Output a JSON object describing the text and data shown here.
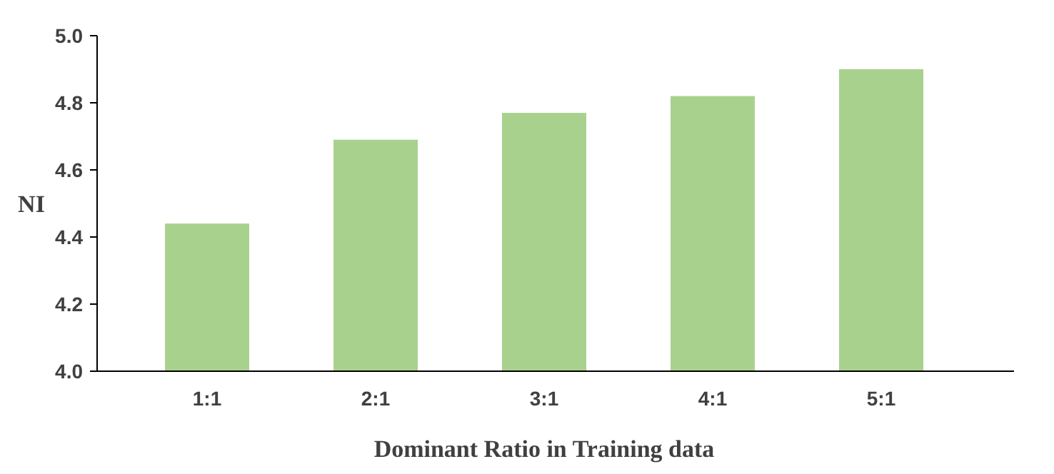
{
  "chart_data": {
    "type": "bar",
    "xlabel": "Dominant Ratio in Training data",
    "ylabel": "NI",
    "categories": [
      "1:1",
      "2:1",
      "3:1",
      "4:1",
      "5:1"
    ],
    "values": [
      4.44,
      4.69,
      4.77,
      4.82,
      4.9
    ],
    "color": "#a9d18e",
    "ylim": [
      4.0,
      5.0
    ],
    "yticks": [
      {
        "value": 4,
        "label": "4.0"
      },
      {
        "value": 4.2,
        "label": "4.2"
      },
      {
        "value": 4.4,
        "label": "4.4"
      },
      {
        "value": 4.6,
        "label": "4.6"
      },
      {
        "value": 4.8,
        "label": "4.8"
      },
      {
        "value": 5,
        "label": "5.0"
      }
    ]
  }
}
